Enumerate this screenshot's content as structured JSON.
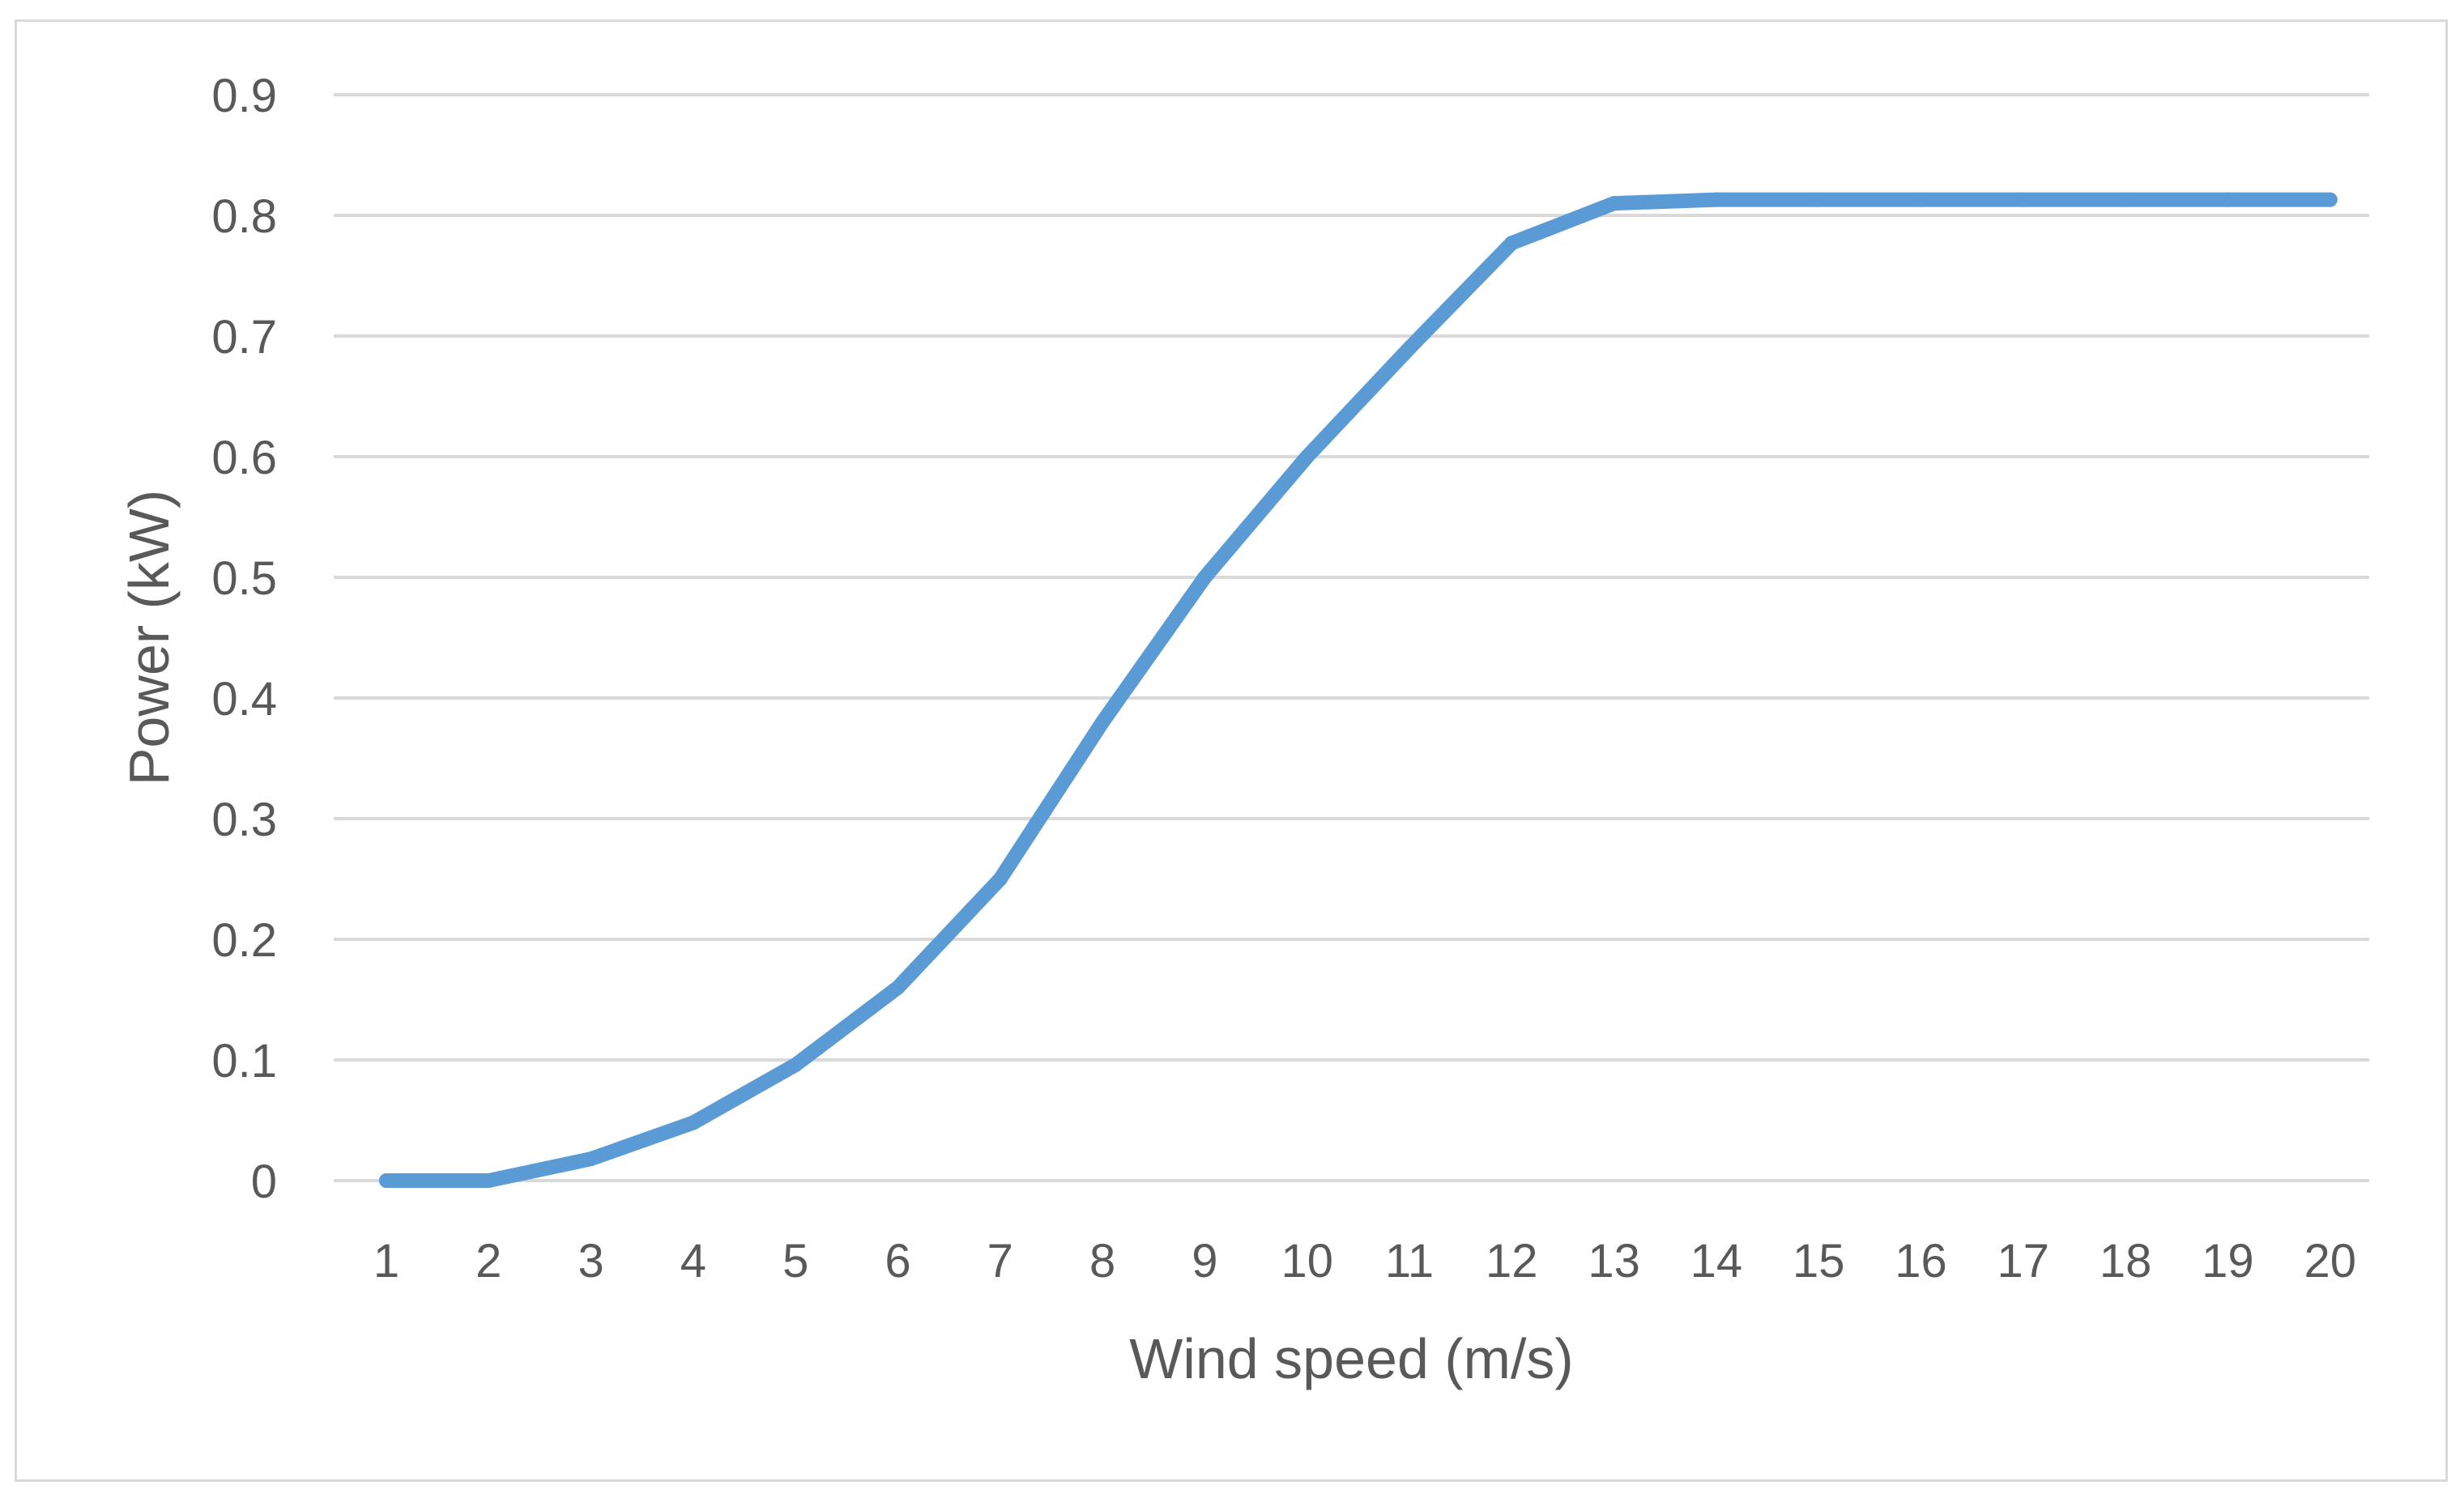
{
  "chart_data": {
    "type": "line",
    "title": "",
    "xlabel": "Wind speed (m/s)",
    "ylabel": "Power (kW)",
    "categories": [
      "1",
      "2",
      "3",
      "4",
      "5",
      "6",
      "7",
      "8",
      "9",
      "10",
      "11",
      "12",
      "13",
      "14",
      "15",
      "16",
      "17",
      "18",
      "19",
      "20"
    ],
    "series": [
      {
        "values": [
          0.0,
          0.0,
          0.018,
          0.048,
          0.096,
          0.16,
          0.25,
          0.38,
          0.5,
          0.6,
          0.69,
          0.777,
          0.81,
          0.813,
          0.813,
          0.813,
          0.813,
          0.813,
          0.813,
          0.813
        ],
        "color": "#5b9bd5"
      }
    ],
    "ylim": [
      0,
      0.9
    ],
    "yticks": [
      "0",
      "0.1",
      "0.2",
      "0.3",
      "0.4",
      "0.5",
      "0.6",
      "0.7",
      "0.8",
      "0.9"
    ],
    "grid": true,
    "legend": "none"
  }
}
